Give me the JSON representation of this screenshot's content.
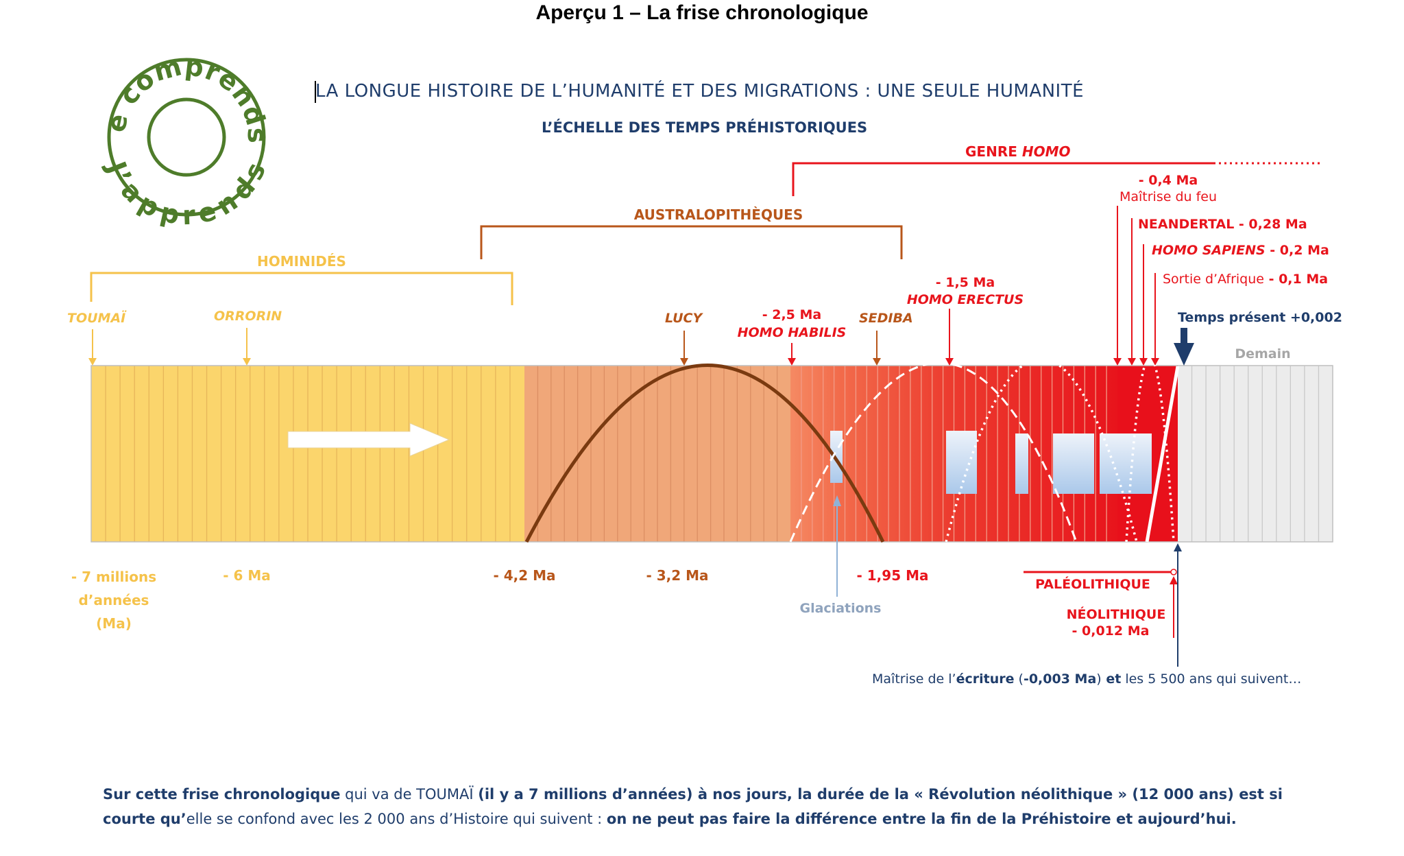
{
  "page_title": "Aperçu 1 – La frise chronologique",
  "main_title": "LA LONGUE HISTOIRE DE L’HUMANITÉ ET DES MIGRATIONS : UNE SEULE HUMANITÉ",
  "subtitle": "L’ÉCHELLE DES TEMPS PRÉHISTORIQUES",
  "logo": {
    "top_text": "Je comprends",
    "bottom_text": "J’apprends"
  },
  "brackets": {
    "hominides": "HOMINIDÉS",
    "australopitheques": "AUSTRALOPITHÈQUES",
    "genre_homo_prefix": "GENRE",
    "genre_homo_italic": "HOMO"
  },
  "events": {
    "toumai": "TOUMAÏ",
    "orrorin": "ORRORIN",
    "lucy": "LUCY",
    "habilis_date": "- 2,5 Ma",
    "habilis_name": "HOMO HABILIS",
    "sediba": "SEDIBA",
    "erectus_date": "- 1,5 Ma",
    "erectus_name": "HOMO ERECTUS",
    "feu_date": "- 0,4 Ma",
    "feu_label": "Maîtrise du feu",
    "neandertal": "NEANDERTAL - 0,28 Ma",
    "sapiens_name": "HOMO SAPIENS",
    "sapiens_date": " - 0,2 Ma",
    "sortie_label": "Sortie d’Afrique",
    "sortie_date": " - 0,1 Ma",
    "present": "Temps présent +0,002",
    "demain": "Demain"
  },
  "axis_labels": {
    "seven_line1": "- 7 millions",
    "seven_line2": "d’années",
    "seven_line3": "(Ma)",
    "six": "- 6 Ma",
    "four_two": "- 4,2 Ma",
    "three_two": "- 3,2 Ma",
    "one_95": "- 1,95 Ma"
  },
  "glaciations": "Glaciations",
  "paleolithique": "PALÉOLITHIQUE",
  "neolithique": "NÉOLITHIQUE",
  "neolithique_date": "- 0,012 Ma",
  "ecriture": {
    "p1": "Maîtrise de l’",
    "p2": "écriture",
    "p3": " (",
    "p4": "-0,003 Ma",
    "p5": ")",
    "p6": " et",
    "p7": " les 5 500 ans qui suivent…"
  },
  "caption": {
    "c1": "Sur cette frise chronologique",
    "c2": " qui va de TOUMAÏ ",
    "c3": "(il y a 7 millions d’années) à nos jours, la durée de la « Révolution néolithique » (12 000 ans) est si courte qu’",
    "c4": "elle se confond avec les 2 000 ans d’Histoire qui suivent : ",
    "c5": "on ne peut pas faire la différence entre la fin de la Préhistoire et aujourd’hui."
  },
  "colors": {
    "yellow": "#fbd56c",
    "salmon": "#f0a779",
    "red": "#e8101b",
    "gray": "#ececec",
    "navy": "#1f3d6b",
    "brown": "#b8561a",
    "gold": "#f5c24a",
    "logo_green": "#4e7c2a"
  }
}
